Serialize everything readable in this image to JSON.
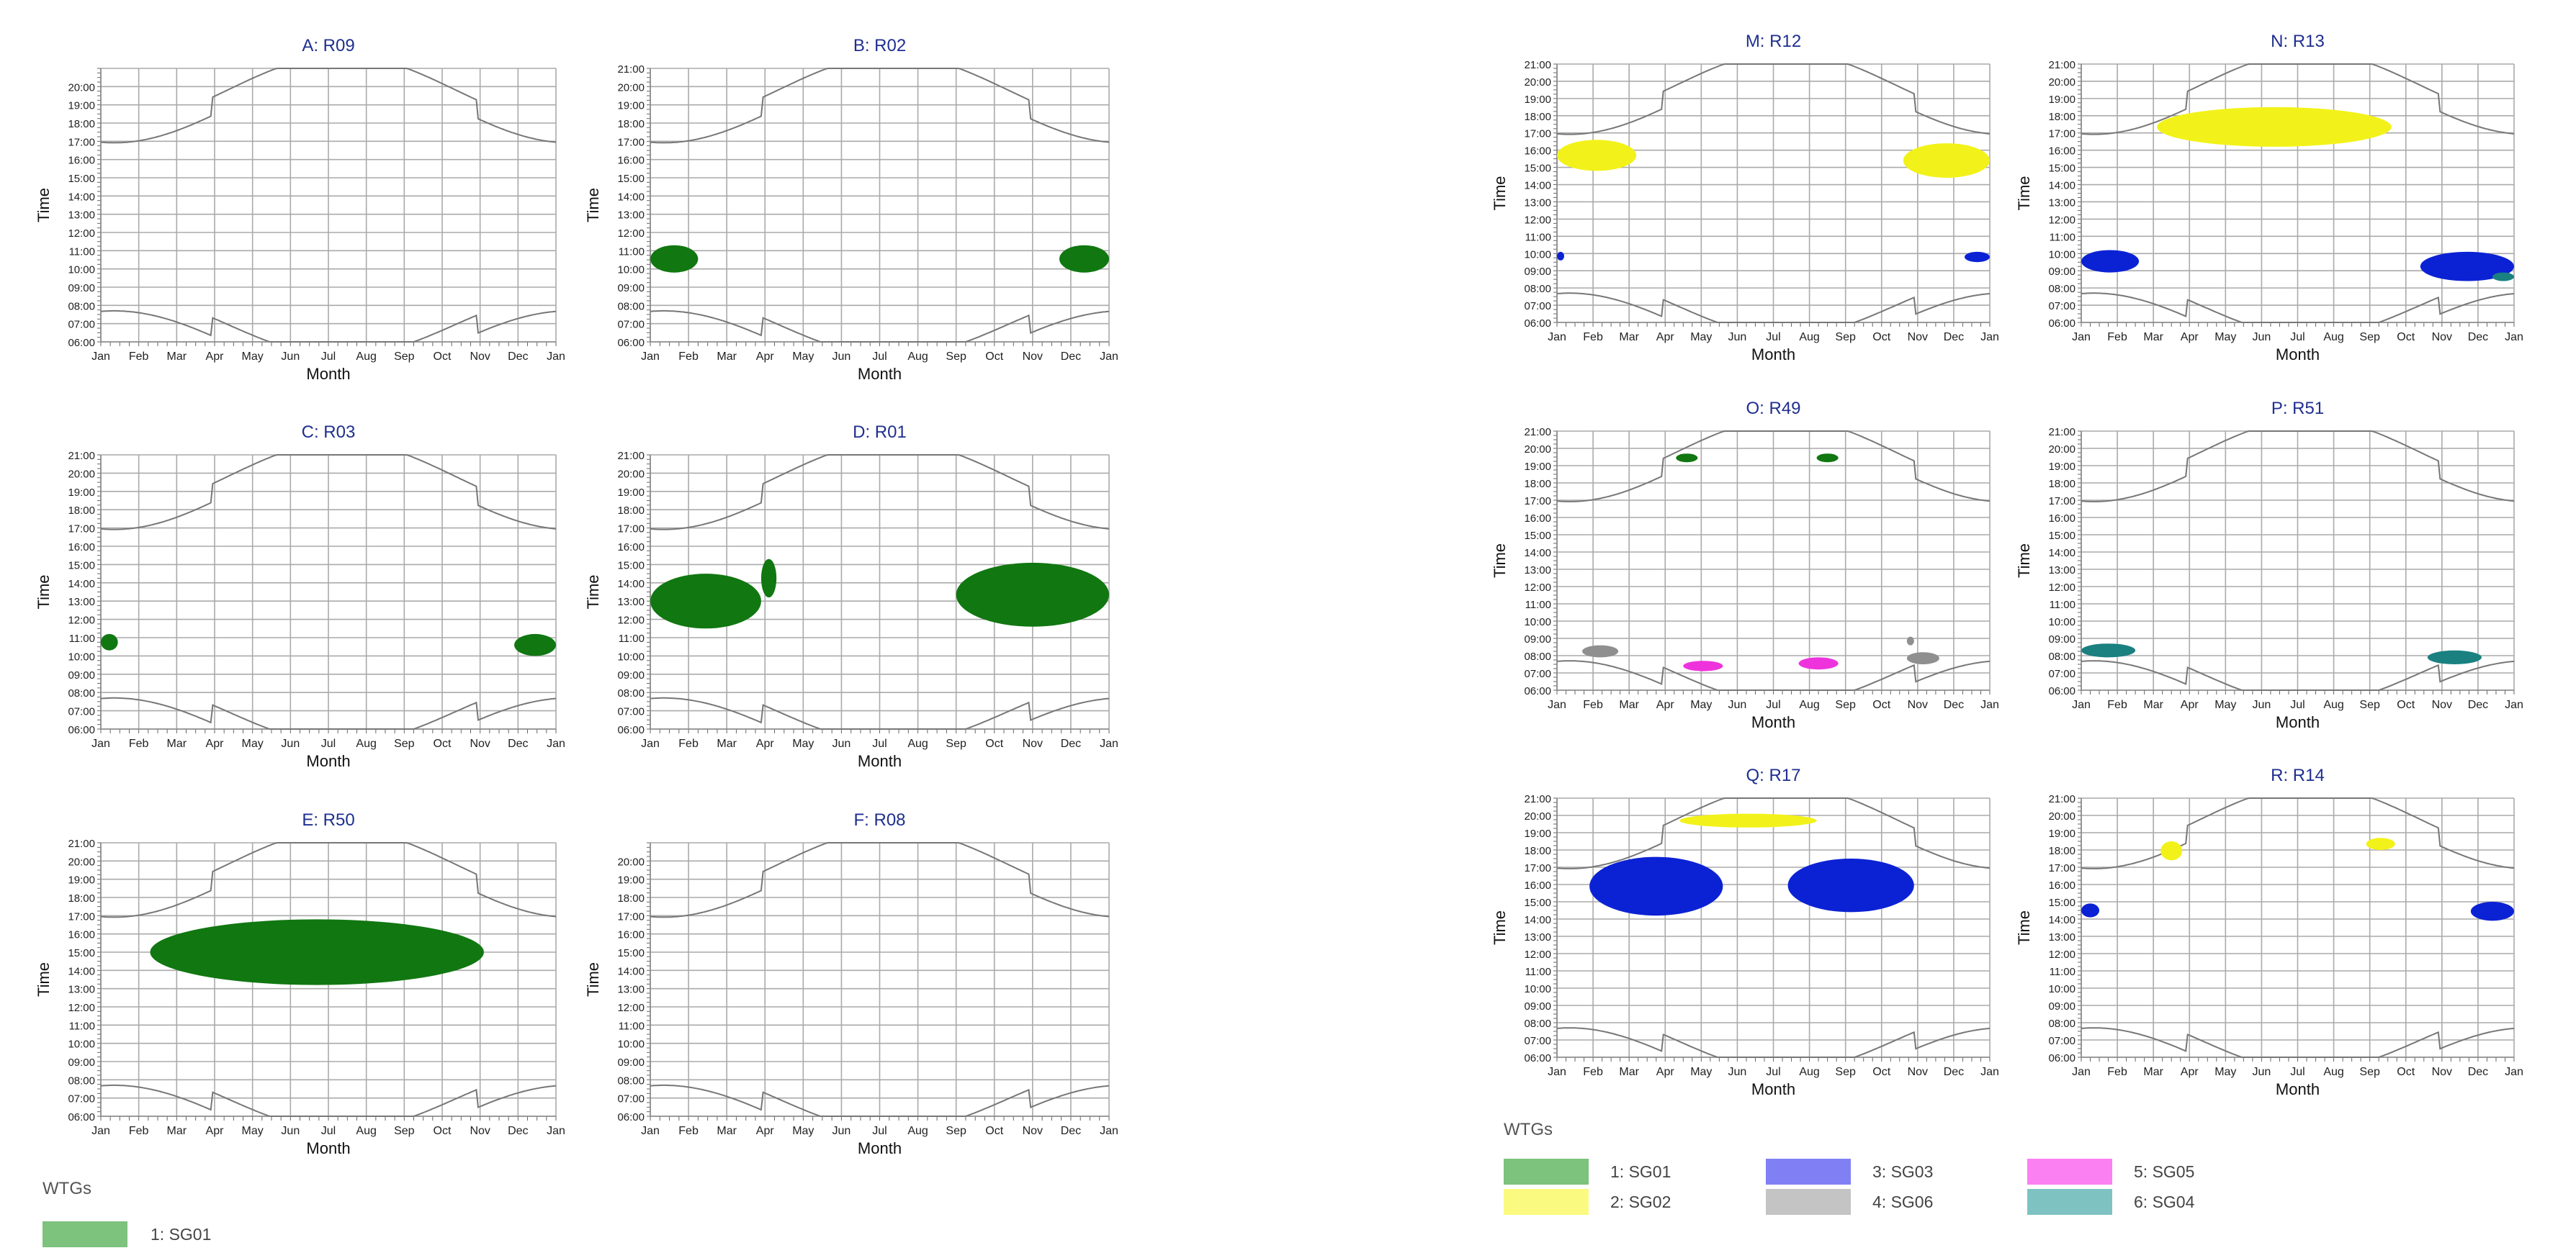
{
  "panel_labels": {
    "A": "A: R09",
    "B": "B: R02",
    "C": "C: R03",
    "D": "D: R01",
    "E": "E: R50",
    "F": "F: R08",
    "M": "M: R12",
    "N": "N: R13",
    "O": "O: R49",
    "P": "P: R51",
    "Q": "Q: R17",
    "R": "R: R14"
  },
  "colors": {
    "SG01": "#117711",
    "SG02": "#f2f21a",
    "SG03": "#0b22d4",
    "SG05": "#ee33dd",
    "SG06": "#8f8f8f",
    "SG04": "#1a8080",
    "legend_SG01": "#7dc27d",
    "legend_SG02": "#fafa80",
    "legend_SG03": "#8080f4",
    "legend_SG05": "#fb80f2",
    "legend_SG06": "#c4c4c4",
    "legend_SG04": "#7fc2c2",
    "title": "#1f2f8f",
    "grid": "#aaaaaa",
    "sun": "#777777"
  },
  "legend_left": {
    "title": "WTGs",
    "items": [
      {
        "label": "1: SG01",
        "color_key": "legend_SG01"
      }
    ]
  },
  "legend_right": {
    "title": "WTGs",
    "items": [
      {
        "label": "1: SG01",
        "color_key": "legend_SG01"
      },
      {
        "label": "3: SG03",
        "color_key": "legend_SG03"
      },
      {
        "label": "5: SG05",
        "color_key": "legend_SG05"
      },
      {
        "label": "2: SG02",
        "color_key": "legend_SG02"
      },
      {
        "label": "4: SG06",
        "color_key": "legend_SG06"
      },
      {
        "label": "6: SG04",
        "color_key": "legend_SG04"
      }
    ]
  },
  "chart_data": [
    {
      "id": "A",
      "type": "area",
      "title": "A: R09",
      "xlabel": "Month",
      "ylabel": "Time",
      "ylim": [
        "06:00",
        "21:00"
      ],
      "categories": [
        "Jan",
        "Feb",
        "Mar",
        "Apr",
        "May",
        "Jun",
        "Jul",
        "Aug",
        "Sep",
        "Oct",
        "Nov",
        "Dec",
        "Jan"
      ],
      "y_ticks": [
        "06:00",
        "07:00",
        "08:00",
        "09:00",
        "10:00",
        "11:00",
        "12:00",
        "13:00",
        "14:00",
        "15:00",
        "16:00",
        "17:00",
        "18:00",
        "19:00",
        "20:00"
      ],
      "series": []
    },
    {
      "id": "B",
      "type": "area",
      "title": "B: R02",
      "xlabel": "Month",
      "ylabel": "Time",
      "ylim": [
        "06:00",
        "21:00"
      ],
      "categories": [
        "Jan",
        "Feb",
        "Mar",
        "Apr",
        "May",
        "Jun",
        "Jul",
        "Aug",
        "Sep",
        "Oct",
        "Nov",
        "Dec",
        "Jan"
      ],
      "y_ticks": [
        "06:00",
        "07:00",
        "08:00",
        "09:00",
        "10:00",
        "11:00",
        "12:00",
        "13:00",
        "14:00",
        "15:00",
        "16:00",
        "17:00",
        "18:00",
        "19:00",
        "20:00",
        "21:00"
      ],
      "series": [
        {
          "wtg": "SG01",
          "blobs": [
            {
              "m0": 0.0,
              "m1": 1.25,
              "t0": 9.8,
              "t1": 11.3
            },
            {
              "m0": 10.7,
              "m1": 12.0,
              "t0": 9.8,
              "t1": 11.3
            }
          ]
        }
      ]
    },
    {
      "id": "C",
      "type": "area",
      "title": "C: R03",
      "xlabel": "Month",
      "ylabel": "Time",
      "ylim": [
        "06:00",
        "21:00"
      ],
      "categories": [
        "Jan",
        "Feb",
        "Mar",
        "Apr",
        "May",
        "Jun",
        "Jul",
        "Aug",
        "Sep",
        "Oct",
        "Nov",
        "Dec",
        "Jan"
      ],
      "y_ticks": [
        "06:00",
        "07:00",
        "08:00",
        "09:00",
        "10:00",
        "11:00",
        "12:00",
        "13:00",
        "14:00",
        "15:00",
        "16:00",
        "17:00",
        "18:00",
        "19:00",
        "20:00",
        "21:00"
      ],
      "series": [
        {
          "wtg": "SG01",
          "blobs": [
            {
              "m0": 0.0,
              "m1": 0.45,
              "t0": 10.3,
              "t1": 11.2
            },
            {
              "m0": 10.9,
              "m1": 12.0,
              "t0": 10.0,
              "t1": 11.2
            }
          ]
        }
      ]
    },
    {
      "id": "D",
      "type": "area",
      "title": "D: R01",
      "xlabel": "Month",
      "ylabel": "Time",
      "ylim": [
        "06:00",
        "21:00"
      ],
      "categories": [
        "Jan",
        "Feb",
        "Mar",
        "Apr",
        "May",
        "Jun",
        "Jul",
        "Aug",
        "Sep",
        "Oct",
        "Nov",
        "Dec",
        "Jan"
      ],
      "y_ticks": [
        "06:00",
        "07:00",
        "08:00",
        "09:00",
        "10:00",
        "11:00",
        "12:00",
        "13:00",
        "14:00",
        "15:00",
        "16:00",
        "17:00",
        "18:00",
        "19:00",
        "20:00",
        "21:00"
      ],
      "series": [
        {
          "wtg": "SG01",
          "blobs": [
            {
              "m0": 0.0,
              "m1": 2.9,
              "t0": 11.5,
              "t1": 14.5
            },
            {
              "m0": 2.9,
              "m1": 3.3,
              "t0": 13.2,
              "t1": 15.3
            },
            {
              "m0": 8.0,
              "m1": 12.0,
              "t0": 11.6,
              "t1": 15.1
            }
          ]
        }
      ]
    },
    {
      "id": "E",
      "type": "area",
      "title": "E: R50",
      "xlabel": "Month",
      "ylabel": "Time",
      "ylim": [
        "06:00",
        "21:00"
      ],
      "categories": [
        "Jan",
        "Feb",
        "Mar",
        "Apr",
        "May",
        "Jun",
        "Jul",
        "Aug",
        "Sep",
        "Oct",
        "Nov",
        "Dec",
        "Jan"
      ],
      "y_ticks": [
        "06:00",
        "07:00",
        "08:00",
        "09:00",
        "10:00",
        "11:00",
        "12:00",
        "13:00",
        "14:00",
        "15:00",
        "16:00",
        "17:00",
        "18:00",
        "19:00",
        "20:00",
        "21:00"
      ],
      "series": [
        {
          "wtg": "SG01",
          "blobs": [
            {
              "m0": 1.3,
              "m1": 10.1,
              "t0": 13.2,
              "t1": 16.8
            }
          ]
        }
      ]
    },
    {
      "id": "F",
      "type": "area",
      "title": "F: R08",
      "xlabel": "Month",
      "ylabel": "Time",
      "ylim": [
        "06:00",
        "21:00"
      ],
      "categories": [
        "Jan",
        "Feb",
        "Mar",
        "Apr",
        "May",
        "Jun",
        "Jul",
        "Aug",
        "Sep",
        "Oct",
        "Nov",
        "Dec",
        "Jan"
      ],
      "y_ticks": [
        "06:00",
        "07:00",
        "08:00",
        "09:00",
        "10:00",
        "11:00",
        "12:00",
        "13:00",
        "14:00",
        "15:00",
        "16:00",
        "17:00",
        "18:00",
        "19:00",
        "20:00"
      ],
      "series": []
    },
    {
      "id": "M",
      "type": "area",
      "title": "M: R12",
      "xlabel": "Month",
      "ylabel": "Time",
      "ylim": [
        "06:00",
        "21:00"
      ],
      "categories": [
        "Jan",
        "Feb",
        "Mar",
        "Apr",
        "May",
        "Jun",
        "Jul",
        "Aug",
        "Sep",
        "Oct",
        "Nov",
        "Dec",
        "Jan"
      ],
      "y_ticks": [
        "06:00",
        "07:00",
        "08:00",
        "09:00",
        "10:00",
        "11:00",
        "12:00",
        "13:00",
        "14:00",
        "15:00",
        "16:00",
        "17:00",
        "18:00",
        "19:00",
        "20:00",
        "21:00"
      ],
      "series": [
        {
          "wtg": "SG02",
          "blobs": [
            {
              "m0": 0.0,
              "m1": 2.2,
              "t0": 14.8,
              "t1": 16.6
            },
            {
              "m0": 9.6,
              "m1": 12.0,
              "t0": 14.4,
              "t1": 16.4
            }
          ]
        },
        {
          "wtg": "SG03",
          "blobs": [
            {
              "m0": 0.0,
              "m1": 0.2,
              "t0": 9.6,
              "t1": 10.1
            },
            {
              "m0": 11.3,
              "m1": 12.0,
              "t0": 9.5,
              "t1": 10.1
            }
          ]
        }
      ]
    },
    {
      "id": "N",
      "type": "area",
      "title": "N: R13",
      "xlabel": "Month",
      "ylabel": "Time",
      "ylim": [
        "06:00",
        "21:00"
      ],
      "categories": [
        "Jan",
        "Feb",
        "Mar",
        "Apr",
        "May",
        "Jun",
        "Jul",
        "Aug",
        "Sep",
        "Oct",
        "Nov",
        "Dec",
        "Jan"
      ],
      "y_ticks": [
        "06:00",
        "07:00",
        "08:00",
        "09:00",
        "10:00",
        "11:00",
        "12:00",
        "13:00",
        "14:00",
        "15:00",
        "16:00",
        "17:00",
        "18:00",
        "19:00",
        "20:00",
        "21:00"
      ],
      "series": [
        {
          "wtg": "SG02",
          "blobs": [
            {
              "m0": 2.1,
              "m1": 8.6,
              "t0": 16.2,
              "t1": 18.5
            }
          ]
        },
        {
          "wtg": "SG03",
          "blobs": [
            {
              "m0": 0.0,
              "m1": 1.6,
              "t0": 8.9,
              "t1": 10.2
            },
            {
              "m0": 9.4,
              "m1": 12.0,
              "t0": 8.4,
              "t1": 10.1
            }
          ]
        },
        {
          "wtg": "SG04",
          "blobs": [
            {
              "m0": 11.4,
              "m1": 12.0,
              "t0": 8.4,
              "t1": 8.9
            }
          ]
        }
      ]
    },
    {
      "id": "O",
      "type": "area",
      "title": "O: R49",
      "xlabel": "Month",
      "ylabel": "Time",
      "ylim": [
        "06:00",
        "21:00"
      ],
      "categories": [
        "Jan",
        "Feb",
        "Mar",
        "Apr",
        "May",
        "Jun",
        "Jul",
        "Aug",
        "Sep",
        "Oct",
        "Nov",
        "Dec",
        "Jan"
      ],
      "y_ticks": [
        "06:00",
        "07:00",
        "08:00",
        "09:00",
        "10:00",
        "11:00",
        "12:00",
        "13:00",
        "14:00",
        "15:00",
        "16:00",
        "17:00",
        "18:00",
        "19:00",
        "20:00",
        "21:00"
      ],
      "series": [
        {
          "wtg": "SG01",
          "blobs": [
            {
              "m0": 3.3,
              "m1": 3.9,
              "t0": 19.2,
              "t1": 19.7
            },
            {
              "m0": 7.2,
              "m1": 7.8,
              "t0": 19.2,
              "t1": 19.7
            }
          ]
        },
        {
          "wtg": "SG06",
          "blobs": [
            {
              "m0": 0.7,
              "m1": 1.7,
              "t0": 7.9,
              "t1": 8.6
            },
            {
              "m0": 9.7,
              "m1": 10.6,
              "t0": 7.5,
              "t1": 8.2
            },
            {
              "m0": 9.7,
              "m1": 9.9,
              "t0": 8.6,
              "t1": 9.1
            }
          ]
        },
        {
          "wtg": "SG05",
          "blobs": [
            {
              "m0": 3.5,
              "m1": 4.6,
              "t0": 7.1,
              "t1": 7.7
            },
            {
              "m0": 6.7,
              "m1": 7.8,
              "t0": 7.2,
              "t1": 7.9
            }
          ]
        }
      ]
    },
    {
      "id": "P",
      "type": "area",
      "title": "P: R51",
      "xlabel": "Month",
      "ylabel": "Time",
      "ylim": [
        "06:00",
        "21:00"
      ],
      "categories": [
        "Jan",
        "Feb",
        "Mar",
        "Apr",
        "May",
        "Jun",
        "Jul",
        "Aug",
        "Sep",
        "Oct",
        "Nov",
        "Dec",
        "Jan"
      ],
      "y_ticks": [
        "06:00",
        "07:00",
        "08:00",
        "09:00",
        "10:00",
        "11:00",
        "12:00",
        "13:00",
        "14:00",
        "15:00",
        "16:00",
        "17:00",
        "18:00",
        "19:00",
        "20:00",
        "21:00"
      ],
      "series": [
        {
          "wtg": "SG04",
          "blobs": [
            {
              "m0": 0.0,
              "m1": 1.5,
              "t0": 7.9,
              "t1": 8.7
            },
            {
              "m0": 9.6,
              "m1": 11.1,
              "t0": 7.5,
              "t1": 8.3
            }
          ]
        }
      ]
    },
    {
      "id": "Q",
      "type": "area",
      "title": "Q: R17",
      "xlabel": "Month",
      "ylabel": "Time",
      "ylim": [
        "06:00",
        "21:00"
      ],
      "categories": [
        "Jan",
        "Feb",
        "Mar",
        "Apr",
        "May",
        "Jun",
        "Jul",
        "Aug",
        "Sep",
        "Oct",
        "Nov",
        "Dec",
        "Jan"
      ],
      "y_ticks": [
        "06:00",
        "07:00",
        "08:00",
        "09:00",
        "10:00",
        "11:00",
        "12:00",
        "13:00",
        "14:00",
        "15:00",
        "16:00",
        "17:00",
        "18:00",
        "19:00",
        "20:00",
        "21:00"
      ],
      "series": [
        {
          "wtg": "SG02",
          "blobs": [
            {
              "m0": 3.4,
              "m1": 7.2,
              "t0": 19.3,
              "t1": 20.1
            }
          ]
        },
        {
          "wtg": "SG03",
          "blobs": [
            {
              "m0": 0.9,
              "m1": 4.6,
              "t0": 14.2,
              "t1": 17.6
            },
            {
              "m0": 6.4,
              "m1": 9.9,
              "t0": 14.4,
              "t1": 17.5
            }
          ]
        }
      ]
    },
    {
      "id": "R",
      "type": "area",
      "title": "R: R14",
      "xlabel": "Month",
      "ylabel": "Time",
      "ylim": [
        "06:00",
        "21:00"
      ],
      "categories": [
        "Jan",
        "Feb",
        "Mar",
        "Apr",
        "May",
        "Jun",
        "Jul",
        "Aug",
        "Sep",
        "Oct",
        "Nov",
        "Dec",
        "Jan"
      ],
      "y_ticks": [
        "06:00",
        "07:00",
        "08:00",
        "09:00",
        "10:00",
        "11:00",
        "12:00",
        "13:00",
        "14:00",
        "15:00",
        "16:00",
        "17:00",
        "18:00",
        "19:00",
        "20:00",
        "21:00"
      ],
      "series": [
        {
          "wtg": "SG02",
          "blobs": [
            {
              "m0": 2.2,
              "m1": 2.8,
              "t0": 17.4,
              "t1": 18.5
            },
            {
              "m0": 7.9,
              "m1": 8.7,
              "t0": 18.0,
              "t1": 18.7
            }
          ]
        },
        {
          "wtg": "SG03",
          "blobs": [
            {
              "m0": 0.0,
              "m1": 0.5,
              "t0": 14.1,
              "t1": 14.9
            },
            {
              "m0": 10.8,
              "m1": 12.0,
              "t0": 13.9,
              "t1": 15.0
            }
          ]
        }
      ]
    }
  ]
}
